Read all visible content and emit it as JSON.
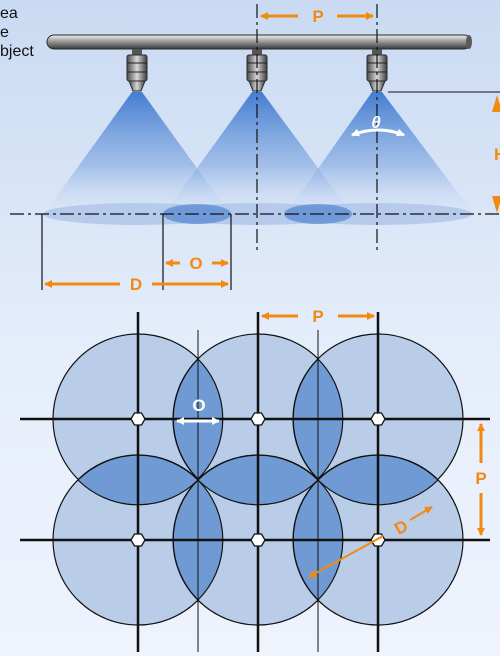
{
  "cut_text": [
    "ea",
    "e",
    "bject"
  ],
  "labels": {
    "pitch": "P",
    "overlap": "O",
    "diameter": "D",
    "angle": "θ",
    "height": "H"
  },
  "colors": {
    "orange": "#f28a12",
    "spray_blue": "#5b8fd6",
    "circle_fill": "#b9cde9",
    "overlap_fill": "#6f9ad4",
    "background": "#d6e3f6"
  }
}
